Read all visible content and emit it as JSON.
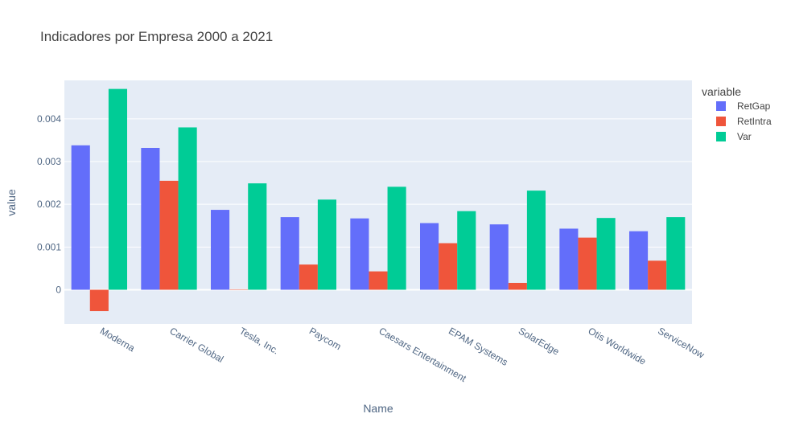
{
  "colors": {
    "RetGap": "#636efa",
    "RetIntra": "#ef553b",
    "Var": "#00cc96",
    "plot_bg": "#e5ecf6",
    "grid": "#ffffff"
  },
  "chart_data": {
    "type": "bar",
    "title": "Indicadores por Empresa 2000 a 2021",
    "xlabel": "Name",
    "ylabel": "value",
    "legend_title": "variable",
    "legend_position": "right",
    "grid": true,
    "ylim": [
      -0.0008,
      0.0049
    ],
    "yticks": [
      0,
      0.001,
      0.002,
      0.003,
      0.004
    ],
    "ytick_labels": [
      "0",
      "0.001",
      "0.002",
      "0.003",
      "0.004"
    ],
    "categories": [
      "Moderna",
      "Carrier Global",
      "Tesla, Inc.",
      "Paycom",
      "Caesars Entertainment",
      "EPAM Systems",
      "SolarEdge",
      "Otis Worldwide",
      "ServiceNow"
    ],
    "series": [
      {
        "name": "RetGap",
        "values": [
          0.00338,
          0.00332,
          0.00187,
          0.0017,
          0.00167,
          0.00156,
          0.00153,
          0.00143,
          0.00137
        ]
      },
      {
        "name": "RetIntra",
        "values": [
          -0.0005,
          0.00255,
          1e-05,
          0.00059,
          0.00043,
          0.00109,
          0.00016,
          0.00122,
          0.00068
        ]
      },
      {
        "name": "Var",
        "values": [
          0.0047,
          0.0038,
          0.00249,
          0.00211,
          0.00241,
          0.00184,
          0.00232,
          0.00168,
          0.0017
        ]
      }
    ]
  }
}
